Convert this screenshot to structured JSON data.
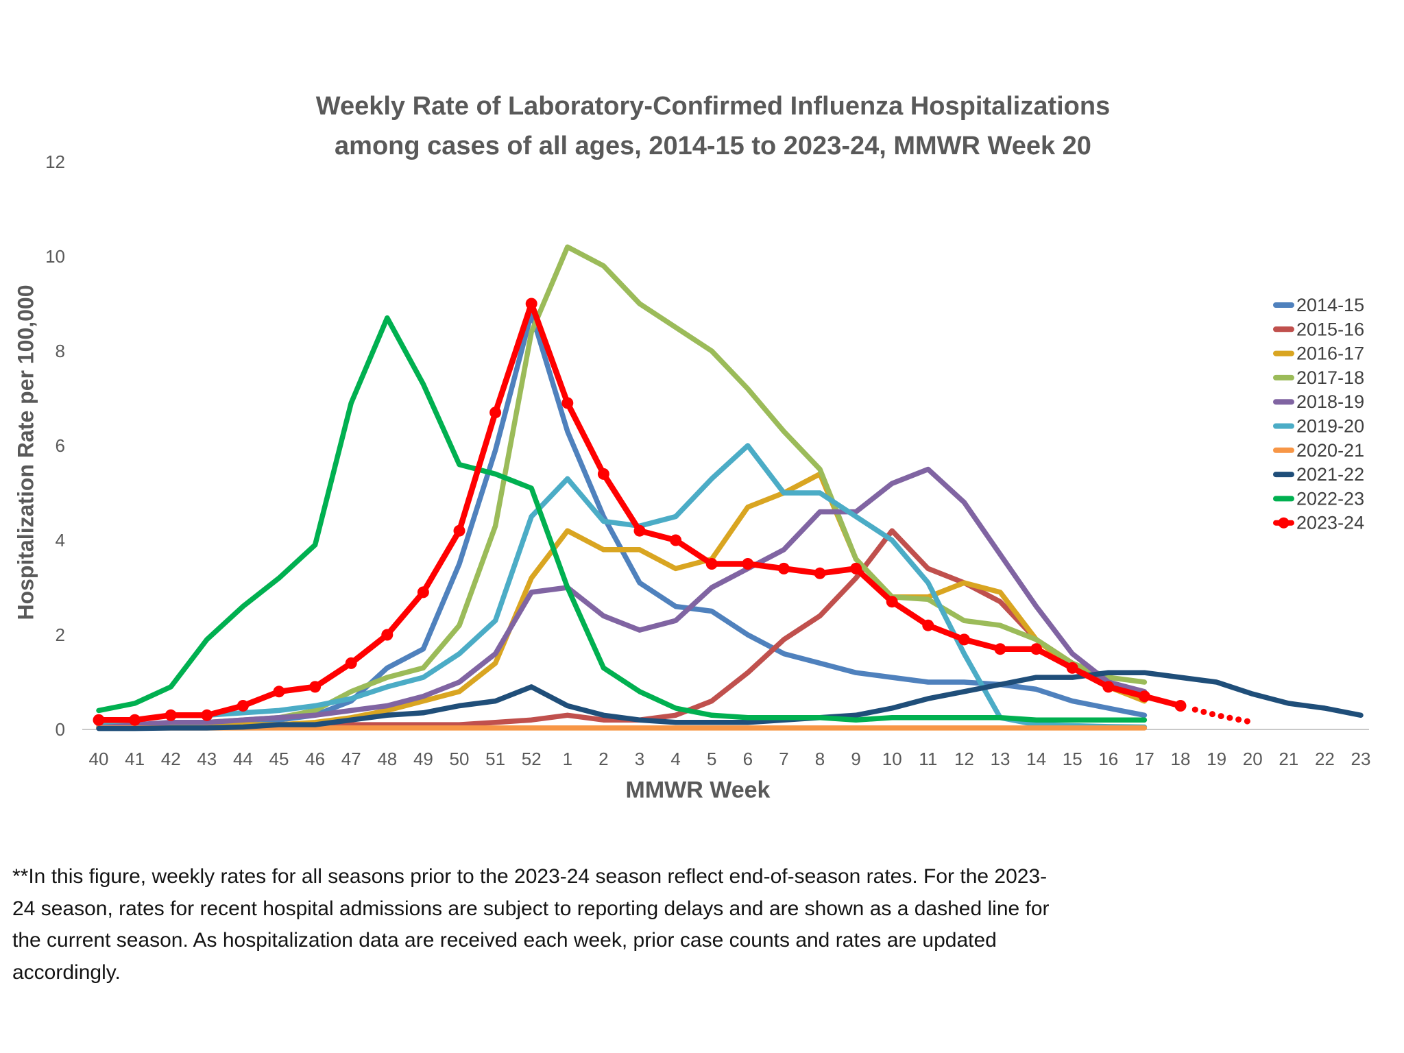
{
  "title": {
    "line1": "Weekly Rate of Laboratory-Confirmed Influenza Hospitalizations",
    "line2": "among cases of all ages, 2014-15 to 2023-24, MMWR Week 20"
  },
  "footnote": "**In this figure, weekly rates for all seasons prior to the 2023-24 season reflect end-of-season rates. For the 2023-24 season, rates for recent hospital admissions are subject to reporting delays and are shown as a dashed line for the current season. As hospitalization data are received each week, prior case counts and rates are updated accordingly.",
  "colors": {
    "axis_line": "#C9C9C9",
    "text_gray": "#595959",
    "legend_text": "#404040"
  },
  "chart_data": {
    "type": "line",
    "title": "Weekly Rate of Laboratory-Confirmed Influenza Hospitalizations among cases of all ages, 2014-15 to 2023-24, MMWR Week 20",
    "xlabel": "MMWR Week",
    "ylabel": "Hospitalization Rate per 100,000",
    "ylim": [
      0,
      12
    ],
    "yticks": [
      0,
      2,
      4,
      6,
      8,
      10,
      12
    ],
    "grid": false,
    "legend_position": "right",
    "categories": [
      "40",
      "41",
      "42",
      "43",
      "44",
      "45",
      "46",
      "47",
      "48",
      "49",
      "50",
      "51",
      "52",
      "1",
      "2",
      "3",
      "4",
      "5",
      "6",
      "7",
      "8",
      "9",
      "10",
      "11",
      "12",
      "13",
      "14",
      "15",
      "16",
      "17",
      "18",
      "19",
      "20",
      "21",
      "22",
      "23"
    ],
    "series": [
      {
        "name": "2014-15",
        "color": "#4F81BD",
        "markers": false,
        "values": [
          0.1,
          0.1,
          0.1,
          0.1,
          0.15,
          0.2,
          0.3,
          0.6,
          1.3,
          1.7,
          3.5,
          5.9,
          8.8,
          6.3,
          4.5,
          3.1,
          2.6,
          2.5,
          2.0,
          1.6,
          1.4,
          1.2,
          1.1,
          1.0,
          1.0,
          0.95,
          0.85,
          0.6,
          0.45,
          0.3,
          null,
          null,
          null,
          null,
          null,
          null
        ]
      },
      {
        "name": "2015-16",
        "color": "#C0504D",
        "markers": false,
        "values": [
          0.05,
          0.05,
          0.05,
          0.05,
          0.05,
          0.05,
          0.05,
          0.1,
          0.1,
          0.1,
          0.1,
          0.15,
          0.2,
          0.3,
          0.2,
          0.2,
          0.3,
          0.6,
          1.2,
          1.9,
          2.4,
          3.2,
          4.2,
          3.4,
          3.1,
          2.7,
          1.9,
          1.4,
          1.0,
          0.7,
          null,
          null,
          null,
          null,
          null,
          null
        ]
      },
      {
        "name": "2016-17",
        "color": "#D9A521",
        "markers": false,
        "values": [
          0.05,
          0.05,
          0.05,
          0.05,
          0.1,
          0.1,
          0.15,
          0.25,
          0.4,
          0.6,
          0.8,
          1.4,
          3.2,
          4.2,
          3.8,
          3.8,
          3.4,
          3.6,
          4.7,
          5.0,
          5.4,
          3.6,
          2.8,
          2.8,
          3.1,
          2.9,
          1.9,
          1.3,
          0.9,
          0.6,
          null,
          null,
          null,
          null,
          null,
          null
        ]
      },
      {
        "name": "2017-18",
        "color": "#9BBB59",
        "markers": false,
        "values": [
          0.1,
          0.1,
          0.1,
          0.15,
          0.2,
          0.25,
          0.4,
          0.8,
          1.1,
          1.3,
          2.2,
          4.3,
          8.4,
          10.2,
          9.8,
          9.0,
          8.5,
          8.0,
          7.2,
          6.3,
          5.5,
          3.6,
          2.8,
          2.75,
          2.3,
          2.2,
          1.9,
          1.4,
          1.1,
          1.0,
          null,
          null,
          null,
          null,
          null,
          null
        ]
      },
      {
        "name": "2018-19",
        "color": "#8064A2",
        "markers": false,
        "values": [
          0.1,
          0.1,
          0.15,
          0.15,
          0.2,
          0.25,
          0.3,
          0.4,
          0.5,
          0.7,
          1.0,
          1.6,
          2.9,
          3.0,
          2.4,
          2.1,
          2.3,
          3.0,
          3.4,
          3.8,
          4.6,
          4.6,
          5.2,
          5.5,
          4.8,
          3.7,
          2.6,
          1.6,
          1.0,
          0.8,
          null,
          null,
          null,
          null,
          null,
          null
        ]
      },
      {
        "name": "2019-20",
        "color": "#4BACC6",
        "markers": false,
        "values": [
          0.15,
          0.2,
          0.3,
          0.3,
          0.35,
          0.4,
          0.5,
          0.65,
          0.9,
          1.1,
          1.6,
          2.3,
          4.5,
          5.3,
          4.4,
          4.3,
          4.5,
          5.3,
          6.0,
          5.0,
          5.0,
          4.5,
          4.0,
          3.1,
          1.6,
          0.25,
          0.1,
          0.08,
          0.06,
          0.05,
          null,
          null,
          null,
          null,
          null,
          null
        ]
      },
      {
        "name": "2020-21",
        "color": "#F79646",
        "markers": false,
        "values": [
          0.03,
          0.03,
          0.03,
          0.03,
          0.03,
          0.03,
          0.03,
          0.03,
          0.03,
          0.03,
          0.03,
          0.03,
          0.03,
          0.03,
          0.03,
          0.03,
          0.03,
          0.03,
          0.03,
          0.03,
          0.03,
          0.03,
          0.03,
          0.03,
          0.03,
          0.03,
          0.03,
          0.03,
          0.03,
          0.03,
          null,
          null,
          null,
          null,
          null,
          null
        ]
      },
      {
        "name": "2021-22",
        "color": "#1F4E79",
        "markers": false,
        "values": [
          0.02,
          0.02,
          0.03,
          0.03,
          0.05,
          0.1,
          0.1,
          0.2,
          0.3,
          0.35,
          0.5,
          0.6,
          0.9,
          0.5,
          0.3,
          0.2,
          0.15,
          0.15,
          0.15,
          0.2,
          0.25,
          0.3,
          0.45,
          0.65,
          0.8,
          0.95,
          1.1,
          1.1,
          1.2,
          1.2,
          1.1,
          1.0,
          0.75,
          0.55,
          0.45,
          0.3
        ]
      },
      {
        "name": "2022-23",
        "color": "#00B050",
        "markers": false,
        "values": [
          0.4,
          0.55,
          0.9,
          1.9,
          2.6,
          3.2,
          3.9,
          6.9,
          8.7,
          7.3,
          5.6,
          5.4,
          5.1,
          3.0,
          1.3,
          0.8,
          0.45,
          0.3,
          0.25,
          0.25,
          0.25,
          0.2,
          0.25,
          0.25,
          0.25,
          0.25,
          0.2,
          0.2,
          0.2,
          0.2,
          null,
          null,
          null,
          null,
          null,
          null
        ]
      },
      {
        "name": "2023-24",
        "color": "#FF0000",
        "markers": true,
        "dashed_from_index": 30,
        "values": [
          0.2,
          0.2,
          0.3,
          0.3,
          0.5,
          0.8,
          0.9,
          1.4,
          2.0,
          2.9,
          4.2,
          6.7,
          9.0,
          6.9,
          5.4,
          4.2,
          4.0,
          3.5,
          3.5,
          3.4,
          3.3,
          3.4,
          2.7,
          2.2,
          1.9,
          1.7,
          1.7,
          1.3,
          0.9,
          0.7,
          0.5,
          0.3,
          0.15,
          null,
          null,
          null
        ]
      }
    ]
  }
}
